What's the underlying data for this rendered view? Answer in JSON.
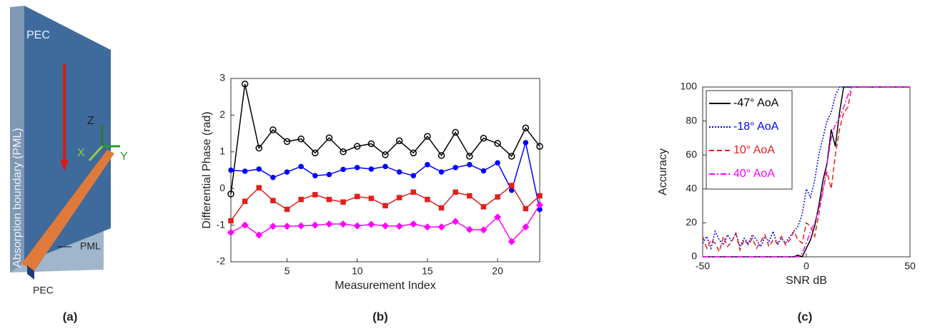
{
  "panel_a": {
    "labels": [
      "PEC",
      "Absorption boundary (PML)",
      "Z",
      "X",
      "Y",
      "PML",
      "PEC"
    ]
  },
  "captions": [
    "(a)",
    "(b)",
    "(c)"
  ],
  "chart_data": [
    {
      "type": "line",
      "xlabel": "Measurement Index",
      "ylabel": "Differential Phase (rad)",
      "x": [
        1,
        2,
        3,
        4,
        5,
        6,
        7,
        8,
        9,
        10,
        11,
        12,
        13,
        14,
        15,
        16,
        17,
        18,
        19,
        20,
        21,
        22,
        23
      ],
      "xlim": [
        1,
        23
      ],
      "xticks": [
        5,
        10,
        15,
        20
      ],
      "ylim": [
        -2,
        3
      ],
      "yticks": [
        -2,
        -1,
        0,
        1,
        2,
        3
      ],
      "series": [
        {
          "color": "#000000",
          "marker": "circle",
          "values": [
            -0.15,
            2.85,
            1.1,
            1.6,
            1.28,
            1.35,
            0.97,
            1.38,
            1.0,
            1.15,
            1.22,
            0.92,
            1.3,
            0.97,
            1.42,
            0.9,
            1.53,
            0.88,
            1.37,
            1.23,
            0.88,
            1.65,
            1.15
          ]
        },
        {
          "color": "#0000ff",
          "marker": "dot",
          "values": [
            0.5,
            0.47,
            0.53,
            0.3,
            0.45,
            0.6,
            0.35,
            0.38,
            0.52,
            0.57,
            0.53,
            0.6,
            0.45,
            0.35,
            0.65,
            0.45,
            0.57,
            0.65,
            0.48,
            0.7,
            -0.05,
            1.25,
            -0.57
          ]
        },
        {
          "color": "#e0201b",
          "marker": "square",
          "values": [
            -0.88,
            -0.35,
            0.02,
            -0.33,
            -0.57,
            -0.3,
            -0.17,
            -0.3,
            -0.37,
            -0.22,
            -0.27,
            -0.47,
            -0.25,
            -0.1,
            -0.3,
            -0.53,
            -0.1,
            -0.2,
            -0.5,
            -0.23,
            0.08,
            -0.55,
            -0.2
          ]
        },
        {
          "color": "#ff00ff",
          "marker": "diamond",
          "values": [
            -1.2,
            -1.0,
            -1.27,
            -1.03,
            -1.03,
            -1.02,
            -1.0,
            -0.97,
            -0.97,
            -1.02,
            -0.98,
            -1.02,
            -1.03,
            -0.97,
            -1.05,
            -1.05,
            -0.9,
            -1.12,
            -1.13,
            -0.78,
            -1.45,
            -1.05,
            -0.45
          ]
        }
      ]
    },
    {
      "type": "line",
      "xlabel": "SNR dB",
      "ylabel": "Accuracy",
      "legend": "upper-left",
      "x": [
        -50,
        -48,
        -46,
        -44,
        -42,
        -40,
        -38,
        -36,
        -34,
        -32,
        -30,
        -28,
        -26,
        -24,
        -22,
        -20,
        -18,
        -16,
        -14,
        -12,
        -10,
        -8,
        -6,
        -4,
        -2,
        0,
        2,
        4,
        6,
        8,
        10,
        12,
        14,
        16,
        18,
        20,
        22,
        24,
        26,
        28,
        30,
        32,
        34,
        36,
        38,
        40,
        42,
        44,
        46,
        48,
        50
      ],
      "xlim": [
        -50,
        50
      ],
      "xticks": [
        -50,
        0,
        50
      ],
      "ylim": [
        0,
        100
      ],
      "yticks": [
        0,
        20,
        40,
        60,
        80,
        100
      ],
      "series": [
        {
          "name": "-47° AoA",
          "color": "#000000",
          "dash": "solid",
          "values": [
            0,
            0,
            0,
            0,
            0,
            0,
            0,
            0,
            0,
            0,
            0,
            0,
            0,
            0,
            0,
            0,
            0,
            0,
            0,
            0,
            0,
            0,
            0,
            1,
            0,
            5,
            10,
            18,
            30,
            45,
            55,
            75,
            65,
            85,
            100,
            100,
            100,
            100,
            100,
            100,
            100,
            100,
            100,
            100,
            100,
            100,
            100,
            100,
            100,
            100,
            100
          ]
        },
        {
          "name": "-18° AoA",
          "color": "#0000ff",
          "dash": "dotted",
          "values": [
            8,
            12,
            5,
            15,
            10,
            7,
            13,
            9,
            14,
            6,
            11,
            8,
            13,
            10,
            6,
            12,
            9,
            15,
            7,
            11,
            8,
            12,
            15,
            18,
            25,
            40,
            35,
            45,
            60,
            70,
            80,
            85,
            95,
            100,
            100,
            100,
            100,
            100,
            100,
            100,
            100,
            100,
            100,
            100,
            100,
            100,
            100,
            100,
            100,
            100,
            100
          ]
        },
        {
          "name": "10° AoA",
          "color": "#e0201b",
          "dash": "dashed",
          "values": [
            12,
            5,
            10,
            8,
            3,
            12,
            6,
            9,
            14,
            4,
            10,
            7,
            11,
            5,
            9,
            13,
            6,
            10,
            8,
            12,
            7,
            10,
            15,
            10,
            8,
            20,
            18,
            12,
            25,
            40,
            50,
            40,
            60,
            75,
            85,
            88,
            100,
            100,
            100,
            100,
            100,
            100,
            100,
            100,
            100,
            100,
            100,
            100,
            100,
            100,
            100
          ]
        },
        {
          "name": "40° AoA",
          "color": "#ff00ff",
          "dash": "dashdot",
          "values": [
            0,
            0,
            0,
            0,
            0,
            0,
            0,
            0,
            0,
            0,
            0,
            0,
            0,
            0,
            0,
            0,
            0,
            0,
            0,
            0,
            0,
            0,
            0,
            0,
            2,
            8,
            15,
            20,
            28,
            38,
            55,
            70,
            78,
            82,
            88,
            95,
            100,
            100,
            100,
            100,
            100,
            100,
            100,
            100,
            100,
            100,
            100,
            100,
            100,
            100,
            100
          ]
        }
      ]
    }
  ]
}
